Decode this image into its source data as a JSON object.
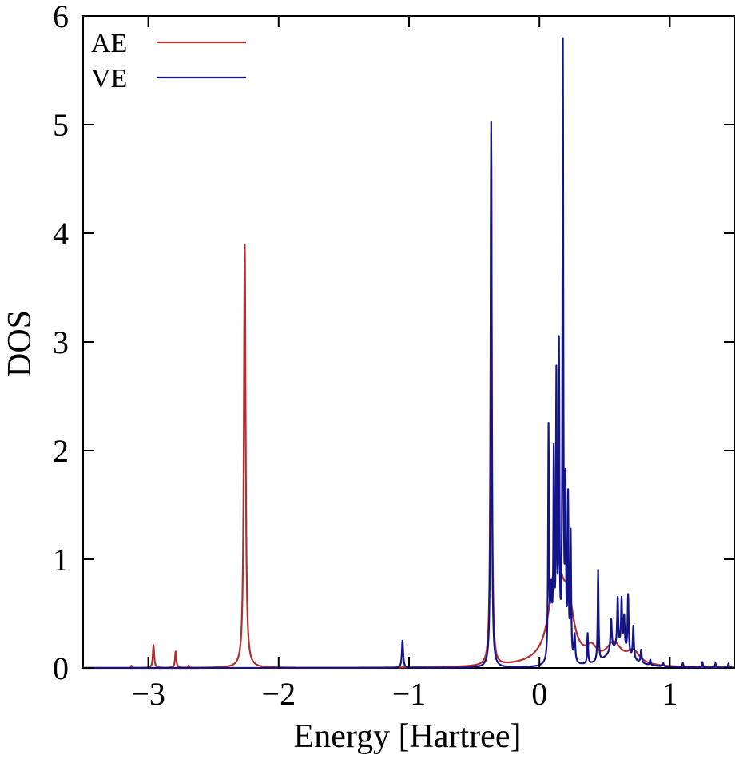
{
  "chart_data": {
    "type": "line",
    "title": "",
    "xlabel": "Energy [Hartree]",
    "ylabel": "DOS",
    "xlim": [
      -3.5,
      1.5
    ],
    "ylim": [
      0,
      6
    ],
    "xticks": [
      -3,
      -2,
      -1,
      0,
      1
    ],
    "xtick_labels": [
      "−3",
      "−2",
      "−1",
      "0",
      "1"
    ],
    "yticks": [
      0,
      1,
      2,
      3,
      4,
      5,
      6
    ],
    "ytick_labels": [
      "0",
      "1",
      "2",
      "3",
      "4",
      "5",
      "6"
    ],
    "grid": false,
    "legend_position": "top-left",
    "series": [
      {
        "name": "AE",
        "color": "#b03030",
        "baseline": 0,
        "peaks": [
          {
            "x": -3.13,
            "y": 0.02,
            "w": 0.004
          },
          {
            "x": -2.96,
            "y": 0.21,
            "w": 0.006
          },
          {
            "x": -2.79,
            "y": 0.15,
            "w": 0.006
          },
          {
            "x": -2.69,
            "y": 0.02,
            "w": 0.004
          },
          {
            "x": -2.26,
            "y": 3.89,
            "w": 0.008
          },
          {
            "x": -0.37,
            "y": 4.9,
            "w": 0.006
          },
          {
            "x": 0.13,
            "y": 0.9,
            "w": 0.06
          },
          {
            "x": 0.22,
            "y": 0.45,
            "w": 0.05
          },
          {
            "x": 0.4,
            "y": 0.12,
            "w": 0.05
          },
          {
            "x": 0.57,
            "y": 0.19,
            "w": 0.07
          },
          {
            "x": 0.72,
            "y": 0.12,
            "w": 0.06
          },
          {
            "x": 0.0,
            "y": 0.02,
            "w": 0.25
          }
        ]
      },
      {
        "name": "VE",
        "color": "#14148a",
        "baseline": 0,
        "peaks": [
          {
            "x": -1.05,
            "y": 0.25,
            "w": 0.006
          },
          {
            "x": -0.37,
            "y": 5.02,
            "w": 0.005
          },
          {
            "x": 0.07,
            "y": 2.12,
            "w": 0.004
          },
          {
            "x": 0.09,
            "y": 0.6,
            "w": 0.008
          },
          {
            "x": 0.11,
            "y": 1.8,
            "w": 0.004
          },
          {
            "x": 0.13,
            "y": 2.52,
            "w": 0.004
          },
          {
            "x": 0.15,
            "y": 2.8,
            "w": 0.004
          },
          {
            "x": 0.18,
            "y": 5.63,
            "w": 0.004
          },
          {
            "x": 0.2,
            "y": 1.5,
            "w": 0.004
          },
          {
            "x": 0.22,
            "y": 1.45,
            "w": 0.004
          },
          {
            "x": 0.24,
            "y": 1.15,
            "w": 0.004
          },
          {
            "x": 0.27,
            "y": 0.25,
            "w": 0.006
          },
          {
            "x": 0.37,
            "y": 0.28,
            "w": 0.004
          },
          {
            "x": 0.45,
            "y": 0.84,
            "w": 0.004
          },
          {
            "x": 0.55,
            "y": 0.3,
            "w": 0.006
          },
          {
            "x": 0.6,
            "y": 0.45,
            "w": 0.005
          },
          {
            "x": 0.63,
            "y": 0.45,
            "w": 0.005
          },
          {
            "x": 0.65,
            "y": 0.3,
            "w": 0.005
          },
          {
            "x": 0.68,
            "y": 0.55,
            "w": 0.005
          },
          {
            "x": 0.72,
            "y": 0.3,
            "w": 0.005
          },
          {
            "x": 0.78,
            "y": 0.12,
            "w": 0.005
          },
          {
            "x": 0.85,
            "y": 0.05,
            "w": 0.004
          },
          {
            "x": 0.95,
            "y": 0.03,
            "w": 0.004
          },
          {
            "x": 1.1,
            "y": 0.04,
            "w": 0.004
          },
          {
            "x": 1.25,
            "y": 0.05,
            "w": 0.004
          },
          {
            "x": 1.35,
            "y": 0.04,
            "w": 0.004
          },
          {
            "x": 1.45,
            "y": 0.04,
            "w": 0.004
          },
          {
            "x": 0.6,
            "y": 0.18,
            "w": 0.1
          }
        ]
      }
    ]
  }
}
